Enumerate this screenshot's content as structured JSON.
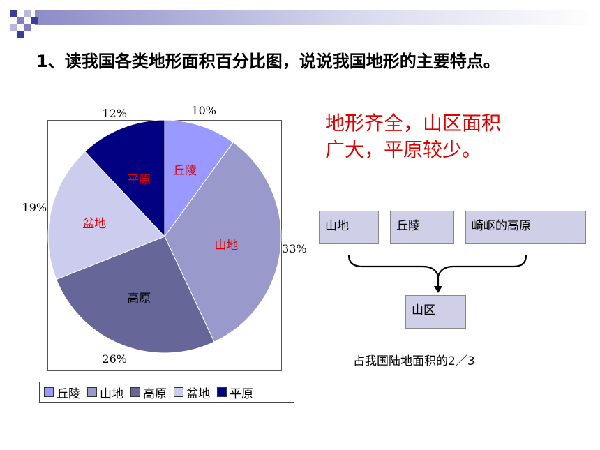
{
  "title": "1、读我国各类地形面积百分比图，说说我国地形的主要特点。",
  "answer": {
    "line1": "地形齐全，山区面积",
    "line2": "广大，平原较少。"
  },
  "diagram": {
    "boxes": [
      "山地",
      "丘陵",
      "崎岖的高原"
    ],
    "result": "山区",
    "note": "占我国陆地面积的2／3"
  },
  "chart_data": {
    "type": "pie",
    "categories": [
      "丘陵",
      "山地",
      "高原",
      "盆地",
      "平原"
    ],
    "values": [
      10,
      33,
      26,
      19,
      12
    ],
    "value_labels": [
      "10%",
      "33%",
      "26%",
      "19%",
      "12%"
    ],
    "colors": [
      "#9999ff",
      "#9999cc",
      "#666699",
      "#ccccee",
      "#000080"
    ],
    "slice_label_colors": [
      "#e00000",
      "#e00000",
      "#000000",
      "#e00000",
      "#e00000"
    ],
    "legend": [
      "丘陵",
      "山地",
      "高原",
      "盆地",
      "平原"
    ],
    "legend_position": "bottom"
  }
}
